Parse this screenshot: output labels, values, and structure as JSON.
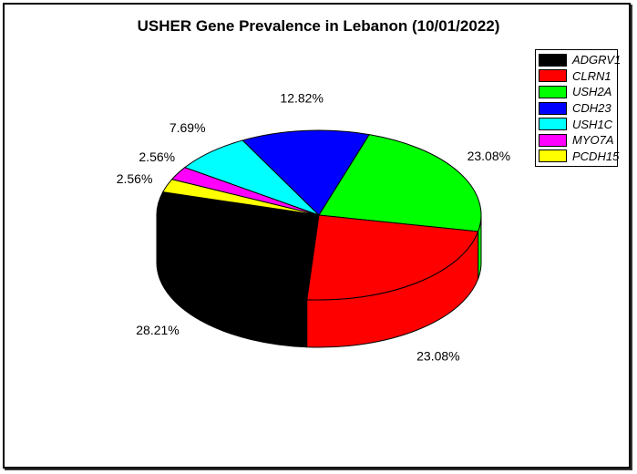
{
  "chart_data": {
    "type": "pie",
    "style": "3d",
    "title": "USHER Gene Prevalence in Lebanon (10/01/2022)",
    "legend_position": "top-right",
    "slices": [
      {
        "label": "ADGRV1",
        "value": 28.21,
        "display": "28.21%",
        "color": "#000000"
      },
      {
        "label": "PCDH15",
        "value": 2.56,
        "display": "2.56%",
        "color": "#FFFF00"
      },
      {
        "label": "MYO7A",
        "value": 2.56,
        "display": "2.56%",
        "color": "#FF00FF"
      },
      {
        "label": "USH1C",
        "value": 7.69,
        "display": "7.69%",
        "color": "#00FFFF"
      },
      {
        "label": "CDH23",
        "value": 12.82,
        "display": "12.82%",
        "color": "#0000FF"
      },
      {
        "label": "USH2A",
        "value": 23.08,
        "display": "23.08%",
        "color": "#00FF00"
      },
      {
        "label": "CLRN1",
        "value": 23.08,
        "display": "23.08%",
        "color": "#FF0000"
      }
    ],
    "legend_order": [
      "ADGRV1",
      "CLRN1",
      "USH2A",
      "CDH23",
      "USH1C",
      "MYO7A",
      "PCDH15"
    ]
  }
}
